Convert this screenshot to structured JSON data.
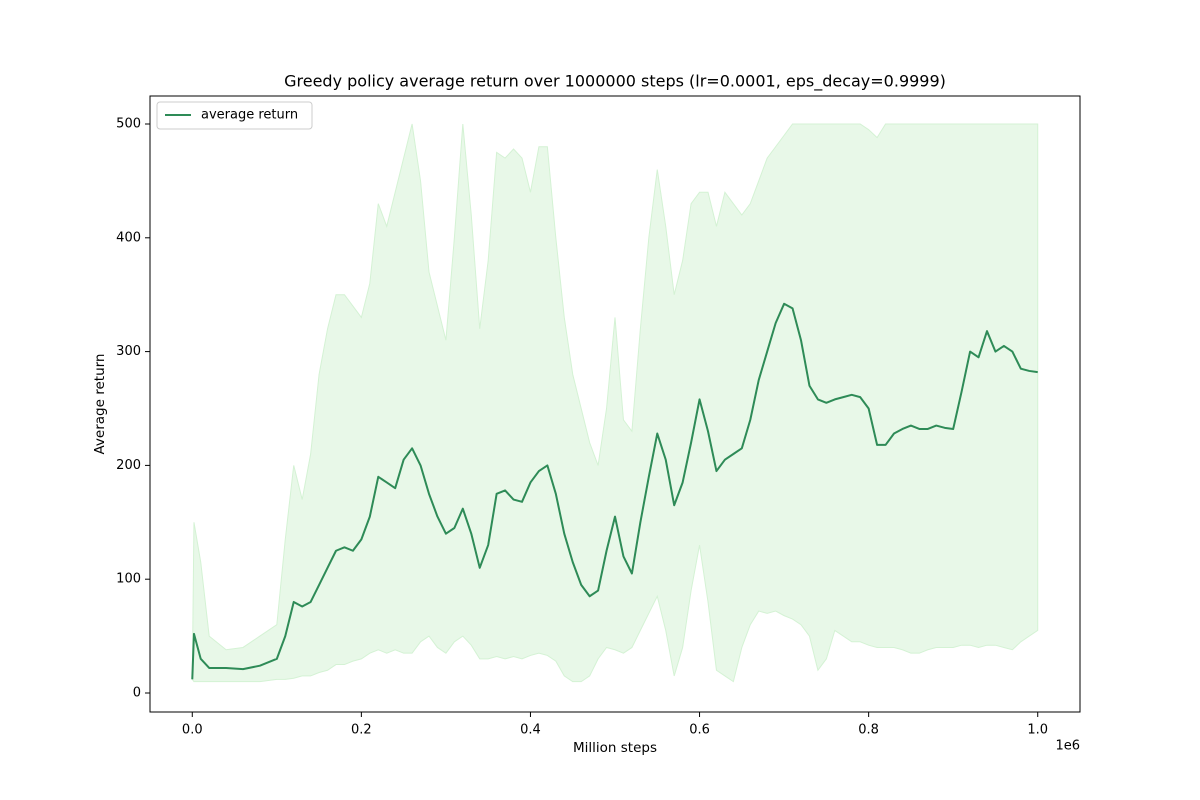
{
  "chart_data": {
    "type": "line",
    "title": "Greedy policy average return over 1000000 steps (lr=0.0001, eps_decay=0.9999)",
    "xlabel": "Million steps",
    "ylabel": "Average return",
    "x_offset_label": "1e6",
    "x": [
      0,
      0.002,
      0.01,
      0.02,
      0.04,
      0.06,
      0.08,
      0.1,
      0.11,
      0.12,
      0.13,
      0.14,
      0.15,
      0.16,
      0.17,
      0.18,
      0.19,
      0.2,
      0.21,
      0.22,
      0.23,
      0.24,
      0.25,
      0.26,
      0.27,
      0.28,
      0.29,
      0.3,
      0.31,
      0.32,
      0.33,
      0.34,
      0.35,
      0.36,
      0.37,
      0.38,
      0.39,
      0.4,
      0.41,
      0.42,
      0.43,
      0.44,
      0.45,
      0.46,
      0.47,
      0.48,
      0.49,
      0.5,
      0.51,
      0.52,
      0.53,
      0.54,
      0.55,
      0.56,
      0.57,
      0.58,
      0.59,
      0.6,
      0.61,
      0.62,
      0.63,
      0.64,
      0.65,
      0.66,
      0.67,
      0.68,
      0.69,
      0.7,
      0.71,
      0.72,
      0.73,
      0.74,
      0.75,
      0.76,
      0.77,
      0.78,
      0.79,
      0.8,
      0.81,
      0.82,
      0.83,
      0.84,
      0.85,
      0.86,
      0.87,
      0.88,
      0.89,
      0.9,
      0.91,
      0.92,
      0.93,
      0.94,
      0.95,
      0.96,
      0.97,
      0.98,
      0.99,
      1.0
    ],
    "series": [
      {
        "name": "average return",
        "color": "#2e8b57",
        "values": [
          12,
          52,
          30,
          22,
          22,
          21,
          24,
          30,
          50,
          80,
          76,
          80,
          95,
          110,
          125,
          128,
          125,
          135,
          155,
          190,
          185,
          180,
          205,
          215,
          200,
          175,
          155,
          140,
          145,
          162,
          140,
          110,
          130,
          175,
          178,
          170,
          168,
          185,
          195,
          200,
          175,
          140,
          115,
          95,
          85,
          90,
          125,
          155,
          120,
          105,
          150,
          190,
          228,
          205,
          165,
          185,
          220,
          258,
          230,
          195,
          205,
          210,
          215,
          240,
          275,
          300,
          325,
          342,
          338,
          310,
          270,
          258,
          255,
          258,
          260,
          262,
          260,
          250,
          218,
          218,
          228,
          232,
          235,
          232,
          232,
          235,
          233,
          232,
          265,
          300,
          295,
          318,
          300,
          305,
          300,
          285,
          283,
          282
        ]
      }
    ],
    "band": {
      "color": "#e8f8e8",
      "edge_color": "#d4f2d4",
      "upper": [
        12,
        150,
        115,
        50,
        38,
        40,
        50,
        60,
        135,
        200,
        170,
        210,
        280,
        320,
        350,
        350,
        340,
        330,
        360,
        430,
        410,
        440,
        470,
        500,
        450,
        370,
        340,
        310,
        400,
        500,
        420,
        320,
        380,
        475,
        470,
        478,
        470,
        440,
        480,
        480,
        400,
        330,
        280,
        250,
        220,
        200,
        250,
        330,
        240,
        230,
        320,
        400,
        460,
        410,
        350,
        380,
        430,
        440,
        440,
        410,
        440,
        430,
        420,
        430,
        450,
        470,
        480,
        490,
        500,
        500,
        500,
        500,
        500,
        500,
        500,
        500,
        500,
        495,
        488,
        500,
        500,
        500,
        500,
        500,
        500,
        500,
        500,
        500,
        500,
        500,
        500,
        500,
        500,
        500,
        500,
        500,
        500,
        500
      ],
      "lower": [
        12,
        10,
        10,
        10,
        10,
        10,
        10,
        12,
        12,
        13,
        15,
        15,
        18,
        20,
        25,
        25,
        28,
        30,
        35,
        38,
        35,
        38,
        35,
        35,
        45,
        50,
        40,
        35,
        45,
        50,
        42,
        30,
        30,
        32,
        30,
        32,
        30,
        33,
        35,
        33,
        28,
        15,
        10,
        10,
        15,
        30,
        40,
        38,
        35,
        40,
        55,
        70,
        85,
        55,
        15,
        40,
        90,
        130,
        80,
        20,
        15,
        10,
        40,
        60,
        72,
        70,
        72,
        68,
        65,
        60,
        50,
        20,
        30,
        55,
        50,
        45,
        45,
        42,
        40,
        40,
        40,
        38,
        35,
        35,
        38,
        40,
        40,
        40,
        42,
        42,
        40,
        42,
        42,
        40,
        38,
        45,
        50,
        55
      ]
    },
    "xlim": [
      -0.05,
      1.05
    ],
    "ylim": [
      -16.7,
      524.6
    ],
    "xticks": [
      {
        "value": 0,
        "label": "0.0"
      },
      {
        "value": 0.2,
        "label": "0.2"
      },
      {
        "value": 0.4,
        "label": "0.4"
      },
      {
        "value": 0.6,
        "label": "0.6"
      },
      {
        "value": 0.8,
        "label": "0.8"
      },
      {
        "value": 1.0,
        "label": "1.0"
      }
    ],
    "yticks": [
      0,
      100,
      200,
      300,
      400,
      500
    ],
    "grid": false,
    "legend": "upper left"
  }
}
